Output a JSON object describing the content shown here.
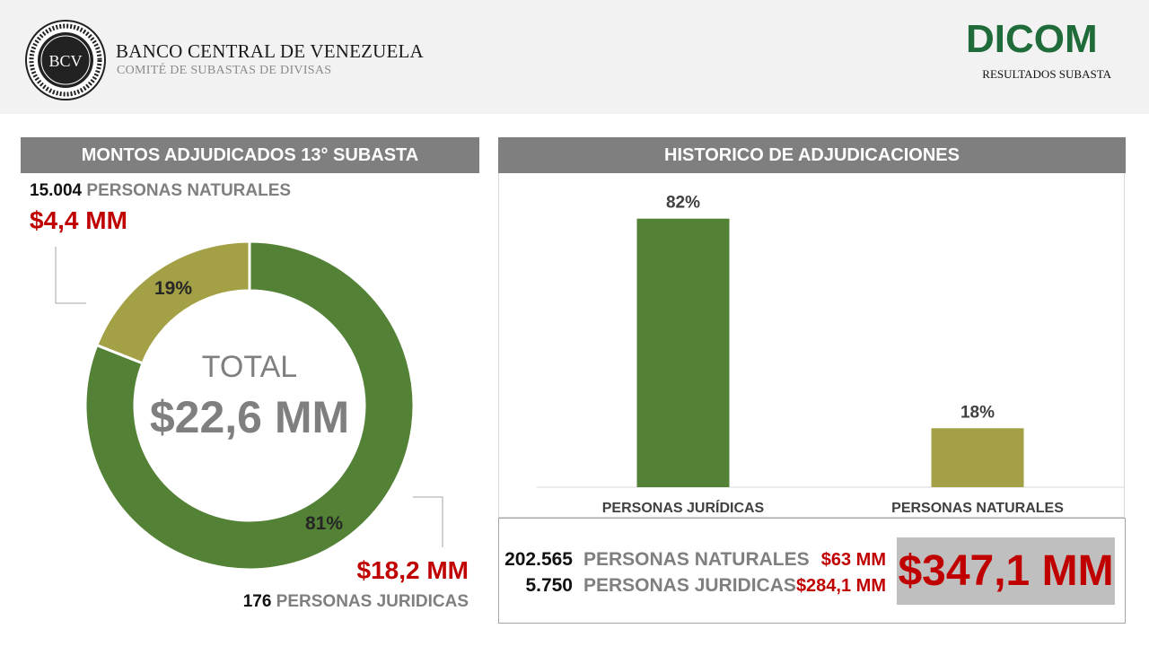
{
  "header": {
    "bank_name": "BANCO CENTRAL DE VENEZUELA",
    "committee": "COMITÉ DE SUBASTAS DE DIVISAS",
    "seal_text": "BCV",
    "logo_text": "DICOM",
    "results_label": "RESULTADOS SUBASTA"
  },
  "left_panel": {
    "title": "MONTOS ADJUDICADOS 13° SUBASTA",
    "naturales_count": "15.004",
    "naturales_label": "PERSONAS NATURALES",
    "naturales_amount": "$4,4 MM",
    "juridicas_count": "176",
    "juridicas_label": "PERSONAS JURIDICAS",
    "juridicas_amount": "$18,2 MM",
    "total_label": "TOTAL",
    "total_amount": "$22,6 MM"
  },
  "right_panel": {
    "title": "HISTORICO DE ADJUDICACIONES"
  },
  "summary": {
    "rows": [
      {
        "count": "202.565",
        "label": "PERSONAS NATURALES",
        "amount": "$63 MM"
      },
      {
        "count": "5.750",
        "label": "PERSONAS JURIDICAS",
        "amount": "$284,1 MM"
      }
    ],
    "total": "$347,1 MM"
  },
  "colors": {
    "green": "#538135",
    "olive": "#a3a045",
    "red": "#c00000",
    "gray_bar": "#7f7f7f"
  },
  "chart_data": [
    {
      "type": "pie",
      "variant": "donut",
      "title": "MONTOS ADJUDICADOS 13° SUBASTA",
      "categories": [
        "PERSONAS JURIDICAS",
        "PERSONAS NATURALES"
      ],
      "values": [
        81,
        19
      ],
      "data_labels": [
        "81%",
        "19%"
      ],
      "colors": [
        "#538135",
        "#a3a045"
      ],
      "center_text": [
        "TOTAL",
        "$22,6 MM"
      ]
    },
    {
      "type": "bar",
      "title": "HISTORICO DE ADJUDICACIONES",
      "categories": [
        "PERSONAS JURÍDICAS",
        "PERSONAS NATURALES"
      ],
      "values": [
        82,
        18
      ],
      "data_labels": [
        "82%",
        "18%"
      ],
      "colors": [
        "#538135",
        "#a3a045"
      ],
      "ylim": [
        0,
        100
      ],
      "grid": false
    }
  ]
}
